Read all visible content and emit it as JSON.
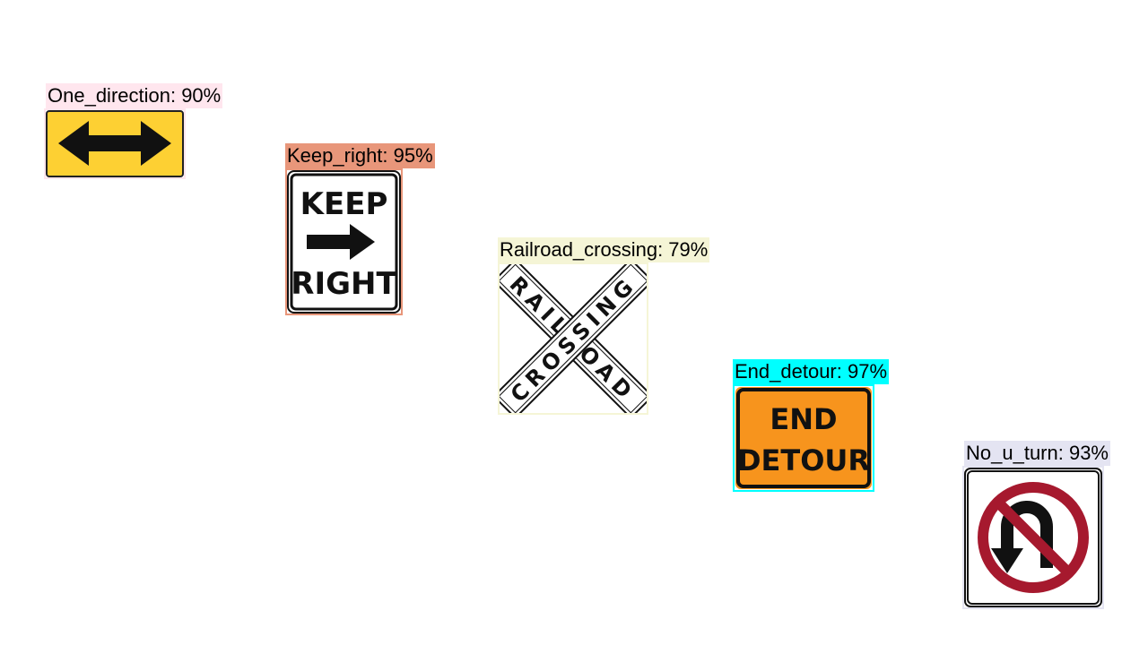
{
  "detections": [
    {
      "label": "One_direction: 90%",
      "class_name": "One_direction",
      "confidence_percent": 90,
      "box_color": "#ffe6ee",
      "sign_color": "#fdd033"
    },
    {
      "label": "Keep_right: 95%",
      "class_name": "Keep_right",
      "confidence_percent": 95,
      "box_color": "#e8967a",
      "sign_text_top": "KEEP",
      "sign_text_bottom": "RIGHT",
      "sign_color": "#ffffff"
    },
    {
      "label": "Railroad_crossing: 79%",
      "class_name": "Railroad_crossing",
      "confidence_percent": 79,
      "box_color": "#f5f5d6",
      "sign_text_a": "RAILROAD",
      "sign_text_b": "CROSSING",
      "sign_color": "#ffffff"
    },
    {
      "label": "End_detour: 97%",
      "class_name": "End_detour",
      "confidence_percent": 97,
      "box_color": "#00ffff",
      "sign_text_top": "END",
      "sign_text_bottom": "DETOUR",
      "sign_color": "#f7941d"
    },
    {
      "label": "No_u_turn: 93%",
      "class_name": "No_u_turn",
      "confidence_percent": 93,
      "box_color": "#e4e4f2",
      "sign_color": "#ffffff",
      "prohibition_color": "#a6192e"
    }
  ]
}
